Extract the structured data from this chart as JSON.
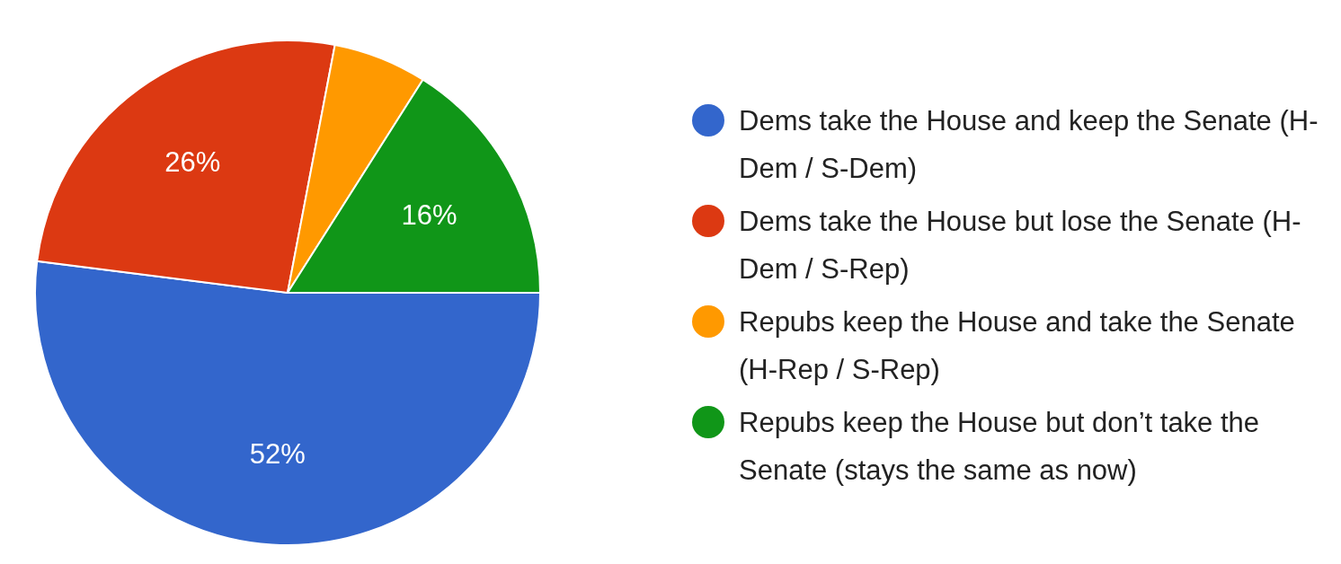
{
  "chart_data": {
    "type": "pie",
    "categories": [
      "Dems take the House and keep the Senate (H-Dem / S-Dem)",
      "Dems take the House but lose the Senate (H-Dem / S-Rep)",
      "Repubs keep the House and take the Senate (H-Rep / S-Rep)",
      "Repubs keep the House but don’t take the Senate (stays the same as now)"
    ],
    "values": [
      52,
      26,
      6,
      16
    ],
    "colors": [
      "#3366cc",
      "#dc3912",
      "#ff9900",
      "#109618"
    ],
    "value_labels": [
      "52%",
      "26%",
      null,
      "16%"
    ],
    "legend": "right"
  }
}
